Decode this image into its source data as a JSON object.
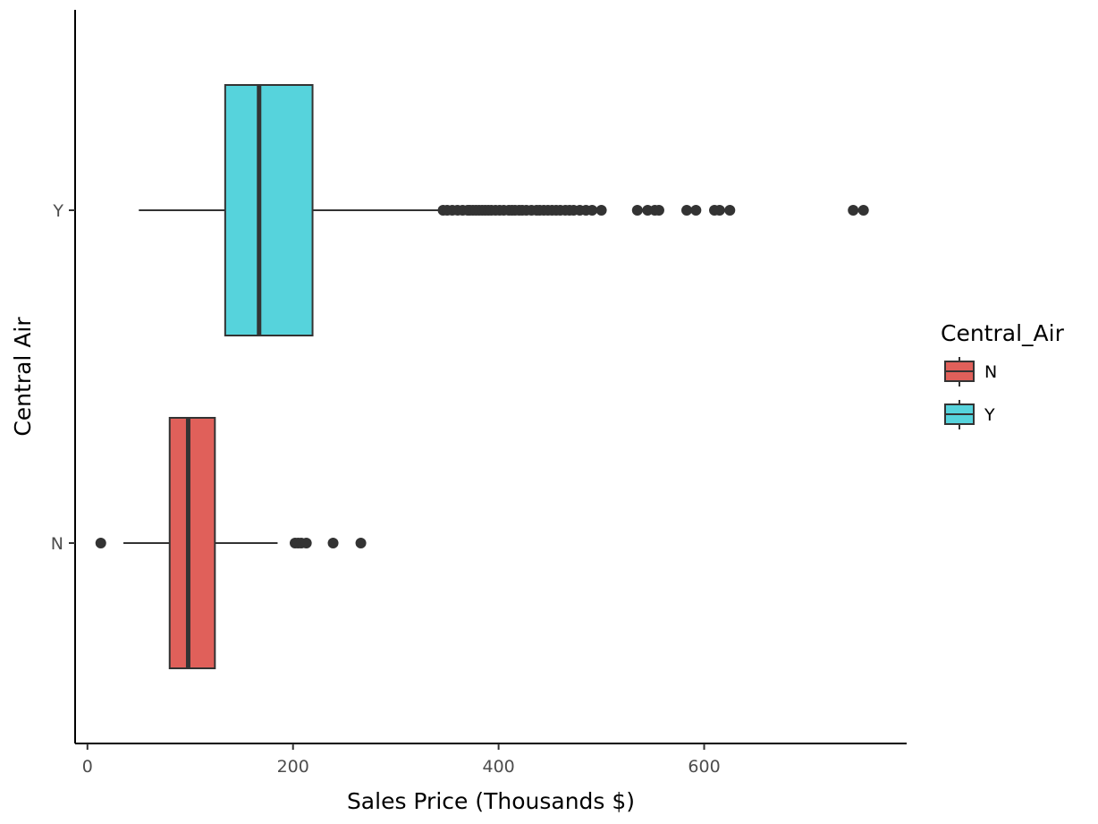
{
  "chart_data": {
    "type": "boxplot",
    "orientation": "horizontal",
    "title": "",
    "xlabel": "Sales Price (Thousands $)",
    "ylabel": "Central Air",
    "xlim": [
      -12,
      797
    ],
    "xticks": [
      0,
      200,
      400,
      600
    ],
    "categories": [
      "N",
      "Y"
    ],
    "grid": false,
    "legend": {
      "title": "Central_Air",
      "position": "right",
      "entries": [
        "N",
        "Y"
      ]
    },
    "series": [
      {
        "name": "N",
        "color": "#e0605a",
        "min": 35,
        "q1": 80,
        "median": 98,
        "q3": 124,
        "max": 185,
        "outliers": [
          13,
          202,
          205,
          208,
          213,
          239,
          266
        ]
      },
      {
        "name": "Y",
        "color": "#56d3dc",
        "min": 50,
        "q1": 134,
        "median": 167,
        "q3": 219,
        "max": 344,
        "outliers": [
          346,
          350,
          355,
          360,
          365,
          370,
          372,
          375,
          378,
          381,
          384,
          387,
          390,
          393,
          397,
          401,
          405,
          410,
          413,
          416,
          420,
          423,
          427,
          432,
          437,
          440,
          444,
          448,
          452,
          456,
          460,
          465,
          469,
          473,
          479,
          485,
          491,
          500,
          535,
          545,
          552,
          556,
          583,
          592,
          610,
          615,
          625,
          745,
          755
        ]
      }
    ]
  }
}
